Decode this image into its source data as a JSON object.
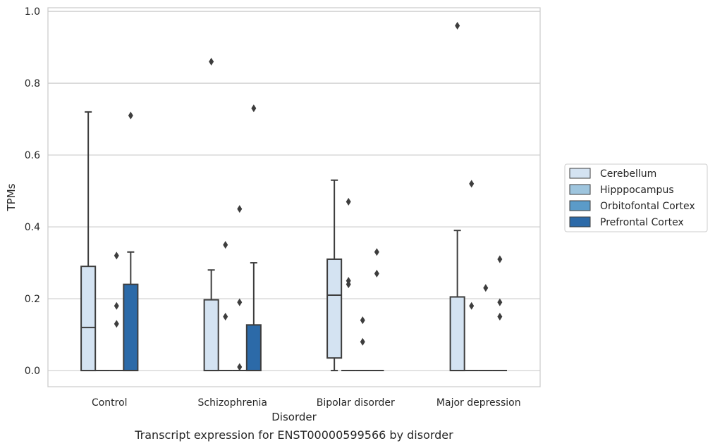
{
  "chart_data": {
    "type": "box",
    "caption": "Transcript expression for ENST00000599566 by disorder",
    "xlabel": "Disorder",
    "ylabel": "TPMs",
    "ylim": [
      -0.045,
      1.01
    ],
    "yticks": [
      0.0,
      0.2,
      0.4,
      0.6,
      0.8,
      1.0
    ],
    "ytick_labels": [
      "0.0",
      "0.2",
      "0.4",
      "0.6",
      "0.8",
      "1.0"
    ],
    "grid": "horizontal",
    "legend_position": "right",
    "categories": [
      "Control",
      "Schizophrenia",
      "Bipolar disorder",
      "Major depression"
    ],
    "series": [
      {
        "name": "Cerebellum",
        "color": "#d4e3f2",
        "boxes": [
          {
            "q1": 0.0,
            "median": 0.12,
            "q3": 0.29,
            "whislo": 0.0,
            "whishi": 0.72,
            "fliers": []
          },
          {
            "q1": 0.0,
            "median": 0.0,
            "q3": 0.197,
            "whislo": 0.0,
            "whishi": 0.28,
            "fliers": [
              0.86
            ]
          },
          {
            "q1": 0.035,
            "median": 0.21,
            "q3": 0.31,
            "whislo": 0.0,
            "whishi": 0.53,
            "fliers": []
          },
          {
            "q1": 0.0,
            "median": 0.0,
            "q3": 0.205,
            "whislo": 0.0,
            "whishi": 0.39,
            "fliers": [
              0.96
            ]
          }
        ]
      },
      {
        "name": "Hipppocampus",
        "color": "#9ec5de",
        "boxes": [
          {
            "q1": 0.0,
            "median": 0.0,
            "q3": 0.0,
            "whislo": 0.0,
            "whishi": 0.0,
            "fliers": []
          },
          {
            "q1": 0.0,
            "median": 0.0,
            "q3": 0.0,
            "whislo": 0.0,
            "whishi": 0.0,
            "fliers": [
              0.35,
              0.15
            ]
          },
          {
            "q1": 0.0,
            "median": 0.0,
            "q3": 0.0,
            "whislo": 0.0,
            "whishi": 0.0,
            "fliers": [
              0.47,
              0.25,
              0.24
            ]
          },
          {
            "q1": 0.0,
            "median": 0.0,
            "q3": 0.0,
            "whislo": 0.0,
            "whishi": 0.0,
            "fliers": [
              0.52,
              0.18
            ]
          }
        ]
      },
      {
        "name": "Orbitofontal Cortex",
        "color": "#5b9bc8",
        "boxes": [
          {
            "q1": 0.0,
            "median": 0.0,
            "q3": 0.0,
            "whislo": 0.0,
            "whishi": 0.0,
            "fliers": [
              0.32,
              0.18,
              0.13
            ]
          },
          {
            "q1": 0.0,
            "median": 0.0,
            "q3": 0.0,
            "whislo": 0.0,
            "whishi": 0.0,
            "fliers": [
              0.45,
              0.19,
              0.01
            ]
          },
          {
            "q1": 0.0,
            "median": 0.0,
            "q3": 0.0,
            "whislo": 0.0,
            "whishi": 0.0,
            "fliers": [
              0.14,
              0.08
            ]
          },
          {
            "q1": 0.0,
            "median": 0.0,
            "q3": 0.0,
            "whislo": 0.0,
            "whishi": 0.0,
            "fliers": [
              0.23
            ]
          }
        ]
      },
      {
        "name": "Prefrontal Cortex",
        "color": "#2c6aa8",
        "boxes": [
          {
            "q1": 0.0,
            "median": 0.0,
            "q3": 0.24,
            "whislo": 0.0,
            "whishi": 0.33,
            "fliers": [
              0.71
            ]
          },
          {
            "q1": 0.0,
            "median": 0.0,
            "q3": 0.127,
            "whislo": 0.0,
            "whishi": 0.3,
            "fliers": [
              0.73
            ]
          },
          {
            "q1": 0.0,
            "median": 0.0,
            "q3": 0.0,
            "whislo": 0.0,
            "whishi": 0.0,
            "fliers": [
              0.33,
              0.27
            ]
          },
          {
            "q1": 0.0,
            "median": 0.0,
            "q3": 0.0,
            "whislo": 0.0,
            "whishi": 0.0,
            "fliers": [
              0.31,
              0.19,
              0.15
            ]
          }
        ]
      }
    ]
  }
}
